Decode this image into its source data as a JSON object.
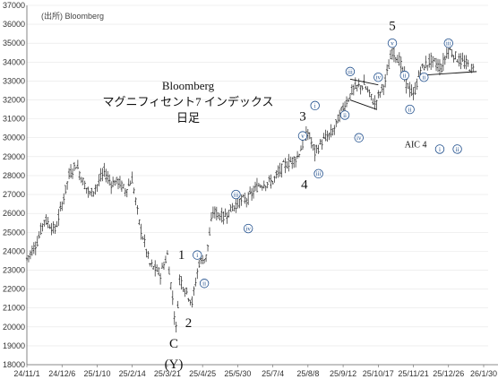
{
  "source_label": "(出所) Bloomberg",
  "title_lines": [
    "Bloomberg",
    "マグニフィセント7 インデックス",
    "日足"
  ],
  "chart_data": {
    "type": "candlestick",
    "ylim": [
      18000,
      37000
    ],
    "y_ticks": [
      18000,
      19000,
      20000,
      21000,
      22000,
      23000,
      24000,
      25000,
      26000,
      27000,
      28000,
      29000,
      30000,
      31000,
      32000,
      33000,
      34000,
      35000,
      36000,
      37000
    ],
    "x_tick_labels": [
      "24/11/1",
      "24/12/6",
      "25/1/10",
      "25/2/14",
      "25/3/21",
      "25/4/25",
      "25/5/30",
      "25/7/4",
      "25/8/8",
      "25/9/12",
      "25/10/17",
      "25/11/21",
      "25/12/26",
      "26/1/30"
    ],
    "series_close": [
      {
        "x": 0,
        "y": 23600
      },
      {
        "x": 0.3,
        "y": 24500
      },
      {
        "x": 0.5,
        "y": 25700
      },
      {
        "x": 0.8,
        "y": 25100
      },
      {
        "x": 1.0,
        "y": 26500
      },
      {
        "x": 1.2,
        "y": 28000
      },
      {
        "x": 1.4,
        "y": 28600
      },
      {
        "x": 1.6,
        "y": 27700
      },
      {
        "x": 1.8,
        "y": 27000
      },
      {
        "x": 2.0,
        "y": 27500
      },
      {
        "x": 2.2,
        "y": 28200
      },
      {
        "x": 2.4,
        "y": 27600
      },
      {
        "x": 2.6,
        "y": 27700
      },
      {
        "x": 2.8,
        "y": 27200
      },
      {
        "x": 3.0,
        "y": 27800
      },
      {
        "x": 3.2,
        "y": 25500
      },
      {
        "x": 3.5,
        "y": 23300
      },
      {
        "x": 3.8,
        "y": 22800
      },
      {
        "x": 4.0,
        "y": 23800
      },
      {
        "x": 4.15,
        "y": 21500
      },
      {
        "x": 4.25,
        "y": 19900
      },
      {
        "x": 4.35,
        "y": 22600
      },
      {
        "x": 4.5,
        "y": 22000
      },
      {
        "x": 4.7,
        "y": 21300
      },
      {
        "x": 4.9,
        "y": 23400
      },
      {
        "x": 5.1,
        "y": 23700
      },
      {
        "x": 5.3,
        "y": 26100
      },
      {
        "x": 5.6,
        "y": 25800
      },
      {
        "x": 6.0,
        "y": 26600
      },
      {
        "x": 6.3,
        "y": 26800
      },
      {
        "x": 6.6,
        "y": 27500
      },
      {
        "x": 7.0,
        "y": 27700
      },
      {
        "x": 7.3,
        "y": 28500
      },
      {
        "x": 7.7,
        "y": 29000
      },
      {
        "x": 8.0,
        "y": 30300
      },
      {
        "x": 8.2,
        "y": 29200
      },
      {
        "x": 8.4,
        "y": 29800
      },
      {
        "x": 8.7,
        "y": 30300
      },
      {
        "x": 9.0,
        "y": 31600
      },
      {
        "x": 9.3,
        "y": 32600
      },
      {
        "x": 9.6,
        "y": 32800
      },
      {
        "x": 9.9,
        "y": 31800
      },
      {
        "x": 10.2,
        "y": 33000
      },
      {
        "x": 10.4,
        "y": 34600
      },
      {
        "x": 10.6,
        "y": 34100
      },
      {
        "x": 10.8,
        "y": 32900
      },
      {
        "x": 11.0,
        "y": 32200
      },
      {
        "x": 11.2,
        "y": 33600
      },
      {
        "x": 11.5,
        "y": 34100
      },
      {
        "x": 11.8,
        "y": 33700
      },
      {
        "x": 12.0,
        "y": 34700
      },
      {
        "x": 12.3,
        "y": 34100
      },
      {
        "x": 12.5,
        "y": 33900
      },
      {
        "x": 12.7,
        "y": 33600
      }
    ],
    "wave_labels": [
      {
        "text": "5",
        "x": 10.4,
        "y": 35700
      },
      {
        "text": "3",
        "x": 7.85,
        "y": 30900
      },
      {
        "text": "4",
        "x": 7.9,
        "y": 27300
      },
      {
        "text": "1",
        "x": 4.4,
        "y": 23600
      },
      {
        "text": "2",
        "x": 4.6,
        "y": 20000
      },
      {
        "text": "C",
        "x": 4.18,
        "y": 18900
      },
      {
        "text": "(Y)",
        "x": 4.18,
        "y": 17800
      }
    ],
    "circled_labels": [
      {
        "text": "v",
        "x": 10.4,
        "y": 35000
      },
      {
        "text": "iii",
        "x": 12.0,
        "y": 35000
      },
      {
        "text": "iii",
        "x": 9.2,
        "y": 33500
      },
      {
        "text": "iv",
        "x": 10.0,
        "y": 33200
      },
      {
        "text": "ii",
        "x": 10.75,
        "y": 33300
      },
      {
        "text": "ii",
        "x": 11.3,
        "y": 33200
      },
      {
        "text": "ii",
        "x": 10.9,
        "y": 31500
      },
      {
        "text": "i",
        "x": 8.2,
        "y": 31700
      },
      {
        "text": "ii",
        "x": 9.05,
        "y": 31200
      },
      {
        "text": "v",
        "x": 7.85,
        "y": 30100
      },
      {
        "text": "iv",
        "x": 9.45,
        "y": 30000
      },
      {
        "text": "iii",
        "x": 8.3,
        "y": 28100
      },
      {
        "text": "iii",
        "x": 5.95,
        "y": 27000
      },
      {
        "text": "iv",
        "x": 6.3,
        "y": 25200
      },
      {
        "text": "i",
        "x": 4.85,
        "y": 23800
      },
      {
        "text": "ii",
        "x": 5.05,
        "y": 22300
      },
      {
        "text": "i",
        "x": 11.75,
        "y": 29400
      },
      {
        "text": "ii",
        "x": 12.25,
        "y": 29400
      }
    ],
    "annotation": {
      "text": "AIC 4",
      "x": 10.75,
      "y": 29500
    },
    "trend_lines": [
      {
        "points": [
          [
            9.2,
            33100
          ],
          [
            10.0,
            32800
          ]
        ]
      },
      {
        "points": [
          [
            9.2,
            32000
          ],
          [
            9.95,
            31500
          ]
        ]
      },
      {
        "points": [
          [
            11.2,
            33300
          ],
          [
            12.8,
            33500
          ]
        ]
      }
    ]
  }
}
